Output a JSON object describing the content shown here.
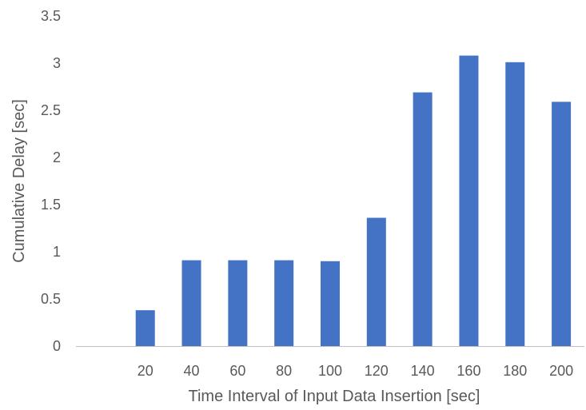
{
  "chart_data": {
    "type": "bar",
    "title": "",
    "xlabel": "Time Interval of Input Data Insertion  [sec]",
    "ylabel": "Cumulative Delay [sec]",
    "categories": [
      "",
      "20",
      "40",
      "60",
      "80",
      "100",
      "120",
      "140",
      "160",
      "180",
      "200"
    ],
    "series": [
      {
        "values": [
          null,
          0.38,
          0.91,
          0.91,
          0.91,
          0.9,
          1.36,
          2.69,
          3.08,
          3.01,
          2.59
        ]
      }
    ],
    "ylim": [
      0,
      3.5
    ],
    "yticks": [
      "0",
      "0.5",
      "1",
      "1.5",
      "2",
      "2.5",
      "3",
      "3.5"
    ],
    "grid": false,
    "legend": "none",
    "bar_color": "#4472C4",
    "axis_color": "#BFBFBF",
    "text_color": "#595959"
  }
}
